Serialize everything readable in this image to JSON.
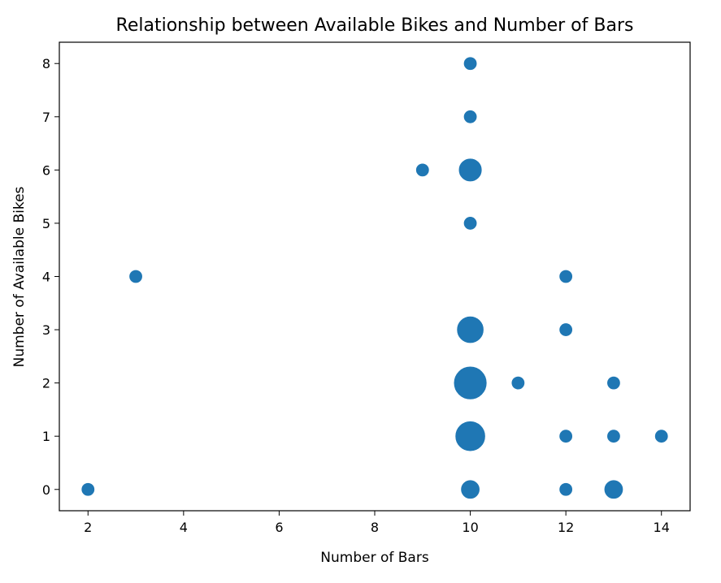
{
  "chart_data": {
    "type": "scatter",
    "title": "Relationship between Available Bikes and Number of Bars",
    "xlabel": "Number of Bars",
    "ylabel": "Number of Available Bikes",
    "xlim": [
      1.4,
      14.6
    ],
    "ylim": [
      -0.4,
      8.4
    ],
    "xticks": [
      2,
      4,
      6,
      8,
      10,
      12,
      14
    ],
    "yticks": [
      0,
      1,
      2,
      3,
      4,
      5,
      6,
      7,
      8
    ],
    "grid": false,
    "legend": "none",
    "marker_color": "#1f77b4",
    "points": [
      {
        "x": 2,
        "y": 0,
        "count": 1
      },
      {
        "x": 3,
        "y": 4,
        "count": 1
      },
      {
        "x": 9,
        "y": 6,
        "count": 1
      },
      {
        "x": 10,
        "y": 8,
        "count": 1
      },
      {
        "x": 10,
        "y": 7,
        "count": 1
      },
      {
        "x": 10,
        "y": 6,
        "count": 3
      },
      {
        "x": 10,
        "y": 5,
        "count": 1
      },
      {
        "x": 10,
        "y": 3,
        "count": 4
      },
      {
        "x": 10,
        "y": 2,
        "count": 6
      },
      {
        "x": 10,
        "y": 1,
        "count": 5
      },
      {
        "x": 10,
        "y": 0,
        "count": 2
      },
      {
        "x": 11,
        "y": 2,
        "count": 1
      },
      {
        "x": 12,
        "y": 4,
        "count": 1
      },
      {
        "x": 12,
        "y": 3,
        "count": 1
      },
      {
        "x": 12,
        "y": 1,
        "count": 1
      },
      {
        "x": 12,
        "y": 0,
        "count": 1
      },
      {
        "x": 13,
        "y": 2,
        "count": 1
      },
      {
        "x": 13,
        "y": 1,
        "count": 1
      },
      {
        "x": 13,
        "y": 0,
        "count": 2
      },
      {
        "x": 14,
        "y": 1,
        "count": 1
      }
    ]
  }
}
